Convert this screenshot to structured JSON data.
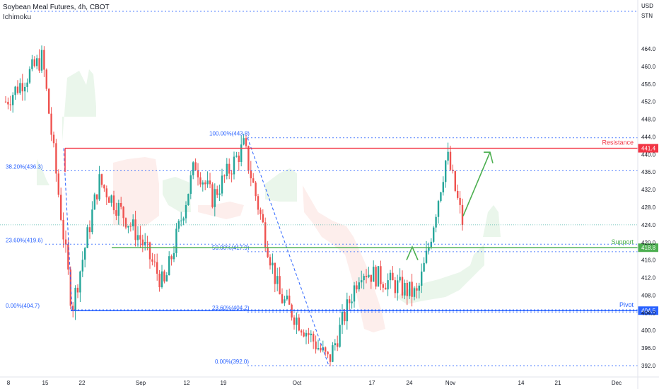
{
  "header": {
    "title": "Soybean Meal Futures, 4h, CBOT",
    "indicator": "Ichimoku",
    "currency": "USD",
    "unit": "STN"
  },
  "colors": {
    "bull": "#26a69a",
    "bear": "#ef5350",
    "resistance": "#f23645",
    "support": "#4caf50",
    "pivot": "#2962ff",
    "fib": "#2962ff",
    "cloud_bull": "#e8f5e9",
    "cloud_bear": "#fdecea"
  },
  "chart_data": {
    "type": "candlestick",
    "y_axis": {
      "min": 392.0,
      "max": 464.0,
      "ticks": [
        "392.0",
        "396.0",
        "400.0",
        "404.0",
        "408.0",
        "412.0",
        "416.0",
        "420.0",
        "424.0",
        "428.0",
        "432.0",
        "436.0",
        "440.0",
        "444.0",
        "448.0",
        "452.0",
        "456.0",
        "460.0",
        "464.0"
      ]
    },
    "x_axis": {
      "labels": [
        "8",
        "15",
        "22",
        "Sep",
        "12",
        "19",
        "Oct",
        "17",
        "24",
        "Nov",
        "14",
        "21",
        "Dec"
      ]
    },
    "price_series": {
      "name": "Soybean Meal Futures",
      "approx_path": [
        {
          "t": "8",
          "v": 452
        },
        {
          "t": "15",
          "v": 462
        },
        {
          "t": "22",
          "v": 405
        },
        {
          "t": "22",
          "v": 434
        },
        {
          "t": "Sep",
          "v": 421
        },
        {
          "t": "Sep",
          "v": 410
        },
        {
          "t": "12",
          "v": 438
        },
        {
          "t": "19",
          "v": 430
        },
        {
          "t": "19",
          "v": 442
        },
        {
          "t": "Oct",
          "v": 408
        },
        {
          "t": "Oct",
          "v": 393
        },
        {
          "t": "17",
          "v": 414
        },
        {
          "t": "24",
          "v": 408
        },
        {
          "t": "24",
          "v": 418
        },
        {
          "t": "Nov",
          "v": 440
        },
        {
          "t": "Nov",
          "v": 424
        }
      ]
    },
    "levels": [
      {
        "name": "Resistance",
        "value": 441.4,
        "price_label": "441.4"
      },
      {
        "name": "Support",
        "value": 418.8,
        "price_label": "418.8"
      },
      {
        "name": "Pivot",
        "value": 404.5,
        "price_label": "404.5"
      }
    ],
    "fib_left": [
      {
        "label": "38.20%(436.3)",
        "value": 436.3
      },
      {
        "label": "23.60%(419.6)",
        "value": 419.6
      },
      {
        "label": "0.00%(404.7)",
        "value": 404.7
      }
    ],
    "fib_right": [
      {
        "label": "100.00%(443.8)",
        "value": 443.8
      },
      {
        "label": "50.00%(417.9)",
        "value": 417.9
      },
      {
        "label": "23.60%(404.2)",
        "value": 404.2
      },
      {
        "label": "0.00%(392.0)",
        "value": 392.0
      }
    ],
    "grid": false
  }
}
